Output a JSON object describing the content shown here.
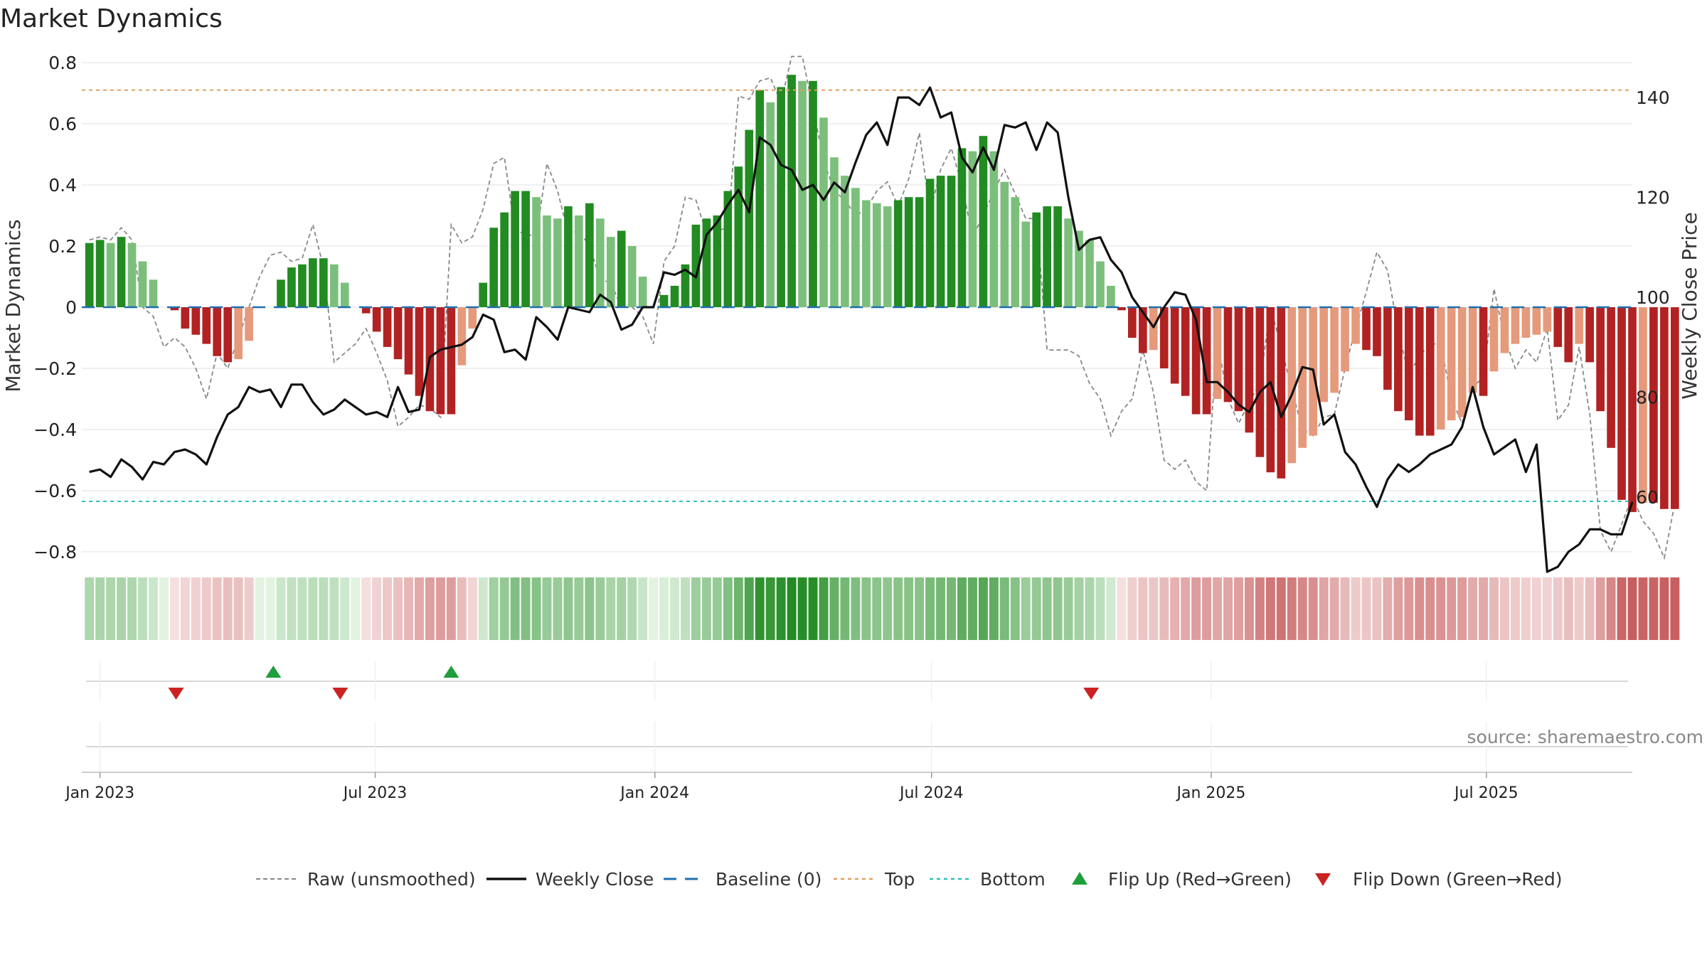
{
  "chart_data": {
    "type": "bar",
    "title": "Market Dynamics",
    "ylabel": "Market Dynamics",
    "y2label": "Weekly Close Price",
    "ylim": [
      -0.8,
      0.8
    ],
    "y2lim": [
      49,
      147
    ],
    "y_ticks": [
      0.8,
      0.6,
      0.4,
      0.2,
      0,
      -0.2,
      -0.4,
      -0.6,
      -0.8
    ],
    "y_tick_labels": [
      "0.8",
      "0.6",
      "0.4",
      "0.2",
      "0",
      "−0.2",
      "−0.4",
      "−0.6",
      "−0.8"
    ],
    "y2_ticks": [
      140,
      120,
      100,
      80,
      60
    ],
    "y2_tick_labels": [
      "140",
      "120",
      "100",
      "80",
      "60"
    ],
    "x_ticks": [
      {
        "date": "2023-01-01",
        "label": "Jan 2023"
      },
      {
        "date": "2023-07-01",
        "label": "Jul 2023"
      },
      {
        "date": "2024-01-01",
        "label": "Jan 2024"
      },
      {
        "date": "2024-07-01",
        "label": "Jul 2024"
      },
      {
        "date": "2025-01-01",
        "label": "Jan 2025"
      },
      {
        "date": "2025-07-01",
        "label": "Jul 2025"
      }
    ],
    "x_range": [
      "2022-12-20",
      "2025-10-05"
    ],
    "first_week": "2022-12-25",
    "top_line": 0.71,
    "bottom_line": -0.635,
    "grid": true,
    "legend_position": "bottom",
    "source_text": "source: sharemaestro.com",
    "colors": {
      "strong_green": "#228B22",
      "light_green": "#7CBF7C",
      "strong_red": "#B22222",
      "light_red": "#E59A7C",
      "close": "#111111",
      "raw": "#888888",
      "baseline": "#1F6FAF",
      "top": "#E0A060",
      "bottom": "#2FBFBF",
      "flip_up": "#1F9E3A",
      "flip_down": "#CC2222"
    },
    "series": [
      {
        "name": "Market Dynamics",
        "values": [
          0.21,
          0.22,
          0.21,
          0.23,
          0.21,
          0.15,
          0.09,
          0.0,
          -0.01,
          -0.07,
          -0.09,
          -0.12,
          -0.16,
          -0.18,
          -0.17,
          -0.11,
          0.0,
          0.0,
          0.09,
          0.13,
          0.14,
          0.16,
          0.16,
          0.14,
          0.08,
          0.0,
          -0.02,
          -0.08,
          -0.13,
          -0.17,
          -0.22,
          -0.29,
          -0.34,
          -0.35,
          -0.35,
          -0.19,
          -0.07,
          0.08,
          0.26,
          0.31,
          0.38,
          0.38,
          0.36,
          0.3,
          0.29,
          0.33,
          0.3,
          0.34,
          0.29,
          0.23,
          0.25,
          0.2,
          0.1,
          0.0,
          0.04,
          0.07,
          0.14,
          0.27,
          0.29,
          0.3,
          0.38,
          0.46,
          0.58,
          0.71,
          0.67,
          0.72,
          0.76,
          0.74,
          0.74,
          0.62,
          0.49,
          0.43,
          0.39,
          0.35,
          0.34,
          0.33,
          0.35,
          0.36,
          0.36,
          0.42,
          0.43,
          0.43,
          0.52,
          0.51,
          0.56,
          0.51,
          0.41,
          0.36,
          0.28,
          0.31,
          0.33,
          0.33,
          0.29,
          0.25,
          0.22,
          0.15,
          0.07,
          -0.01,
          -0.1,
          -0.15,
          -0.14,
          -0.2,
          -0.25,
          -0.29,
          -0.35,
          -0.35,
          -0.3,
          -0.31,
          -0.34,
          -0.41,
          -0.49,
          -0.54,
          -0.56,
          -0.51,
          -0.46,
          -0.42,
          -0.31,
          -0.28,
          -0.21,
          -0.12,
          -0.14,
          -0.16,
          -0.27,
          -0.34,
          -0.37,
          -0.42,
          -0.42,
          -0.4,
          -0.37,
          -0.36,
          -0.28,
          -0.29,
          -0.21,
          -0.15,
          -0.12,
          -0.1,
          -0.09,
          -0.08,
          -0.13,
          -0.18,
          -0.12,
          -0.18,
          -0.34,
          -0.46,
          -0.63,
          -0.67,
          -0.64,
          -0.64,
          -0.66,
          -0.66
        ]
      },
      {
        "name": "Raw (unsmoothed)",
        "values": [
          0.22,
          0.23,
          0.22,
          0.26,
          0.22,
          0.0,
          -0.03,
          -0.13,
          -0.1,
          -0.13,
          -0.2,
          -0.3,
          -0.15,
          -0.2,
          -0.1,
          0.0,
          0.1,
          0.17,
          0.18,
          0.15,
          0.16,
          0.27,
          0.13,
          -0.18,
          -0.15,
          -0.12,
          -0.07,
          -0.15,
          -0.24,
          -0.39,
          -0.36,
          -0.32,
          -0.33,
          -0.36,
          0.27,
          0.21,
          0.23,
          0.32,
          0.47,
          0.49,
          0.25,
          0.24,
          0.23,
          0.47,
          0.38,
          0.24,
          0.25,
          0.2,
          0.09,
          0.08,
          0.0,
          0.0,
          -0.03,
          -0.12,
          0.15,
          0.2,
          0.36,
          0.35,
          0.24,
          0.25,
          0.26,
          0.69,
          0.68,
          0.74,
          0.75,
          0.67,
          0.82,
          0.82,
          0.65,
          0.48,
          0.38,
          0.35,
          0.3,
          0.32,
          0.38,
          0.41,
          0.33,
          0.42,
          0.57,
          0.31,
          0.45,
          0.52,
          0.4,
          0.23,
          0.3,
          0.38,
          0.45,
          0.37,
          0.29,
          0.29,
          -0.14,
          -0.14,
          -0.14,
          -0.16,
          -0.25,
          -0.3,
          -0.42,
          -0.34,
          -0.3,
          -0.14,
          -0.28,
          -0.5,
          -0.53,
          -0.5,
          -0.57,
          -0.6,
          -0.11,
          -0.3,
          -0.38,
          -0.31,
          -0.25,
          0.0,
          -0.13,
          -0.27,
          -0.4,
          -0.42,
          -0.36,
          -0.35,
          -0.2,
          -0.07,
          0.05,
          0.18,
          0.12,
          -0.08,
          -0.22,
          -0.16,
          -0.12,
          -0.12,
          -0.3,
          -0.38,
          -0.26,
          -0.23,
          0.06,
          -0.1,
          -0.2,
          -0.14,
          -0.18,
          -0.07,
          -0.37,
          -0.32,
          -0.13,
          -0.35,
          -0.73,
          -0.8,
          -0.71,
          -0.62,
          -0.7,
          -0.74,
          -0.82,
          -0.64
        ]
      },
      {
        "name": "Weekly Close",
        "values": [
          65,
          65.5,
          64,
          67.5,
          66,
          63.5,
          67,
          66.5,
          69,
          69.5,
          68.5,
          66.5,
          72,
          76.5,
          78,
          82,
          81,
          81.5,
          78,
          82.5,
          82.5,
          79,
          76.5,
          77.5,
          79.5,
          78,
          76.5,
          77,
          76,
          82,
          77,
          77.5,
          88,
          89.5,
          90,
          90.5,
          92,
          96.5,
          95.5,
          89,
          89.5,
          87.5,
          96,
          94,
          91.5,
          98,
          97.5,
          97,
          100.5,
          99,
          93.5,
          94.5,
          98,
          98,
          105,
          104.5,
          105.5,
          104,
          112.5,
          115,
          118.5,
          121.5,
          117,
          132,
          130.5,
          126.5,
          125.5,
          121.5,
          122.5,
          119.5,
          123,
          121,
          127,
          132.5,
          135,
          130.5,
          140,
          140,
          138.5,
          142,
          136,
          137,
          128,
          125,
          130,
          125.5,
          134.5,
          134,
          135,
          129.5,
          135,
          133,
          120,
          109.5,
          111.5,
          112,
          107.5,
          105,
          100,
          97,
          94,
          98,
          101,
          100.5,
          95.5,
          83,
          83,
          81,
          78.5,
          77,
          81,
          83,
          76,
          80.5,
          86,
          85.5,
          74.5,
          76.5,
          69,
          66.5,
          62,
          58,
          63.5,
          66.5,
          65,
          66.5,
          68.5,
          69.5,
          70.5,
          74,
          82,
          74,
          68.5,
          70,
          71.5,
          65,
          70.5,
          45,
          46,
          49,
          50.5,
          53.5,
          53.5,
          52.5,
          52.5,
          59
        ]
      },
      {
        "name": "Baseline (0)"
      },
      {
        "name": "Top"
      },
      {
        "name": "Bottom"
      },
      {
        "name": "Flip Up (Red→Green)",
        "dates": [
          "2023-04-25",
          "2023-08-20"
        ]
      },
      {
        "name": "Flip Down (Green→Red)",
        "dates": [
          "2023-02-20",
          "2023-06-08",
          "2024-10-14"
        ]
      }
    ],
    "heat_strip": "color band of Market Dynamics by week (green positive, red negative, darker = stronger)"
  }
}
